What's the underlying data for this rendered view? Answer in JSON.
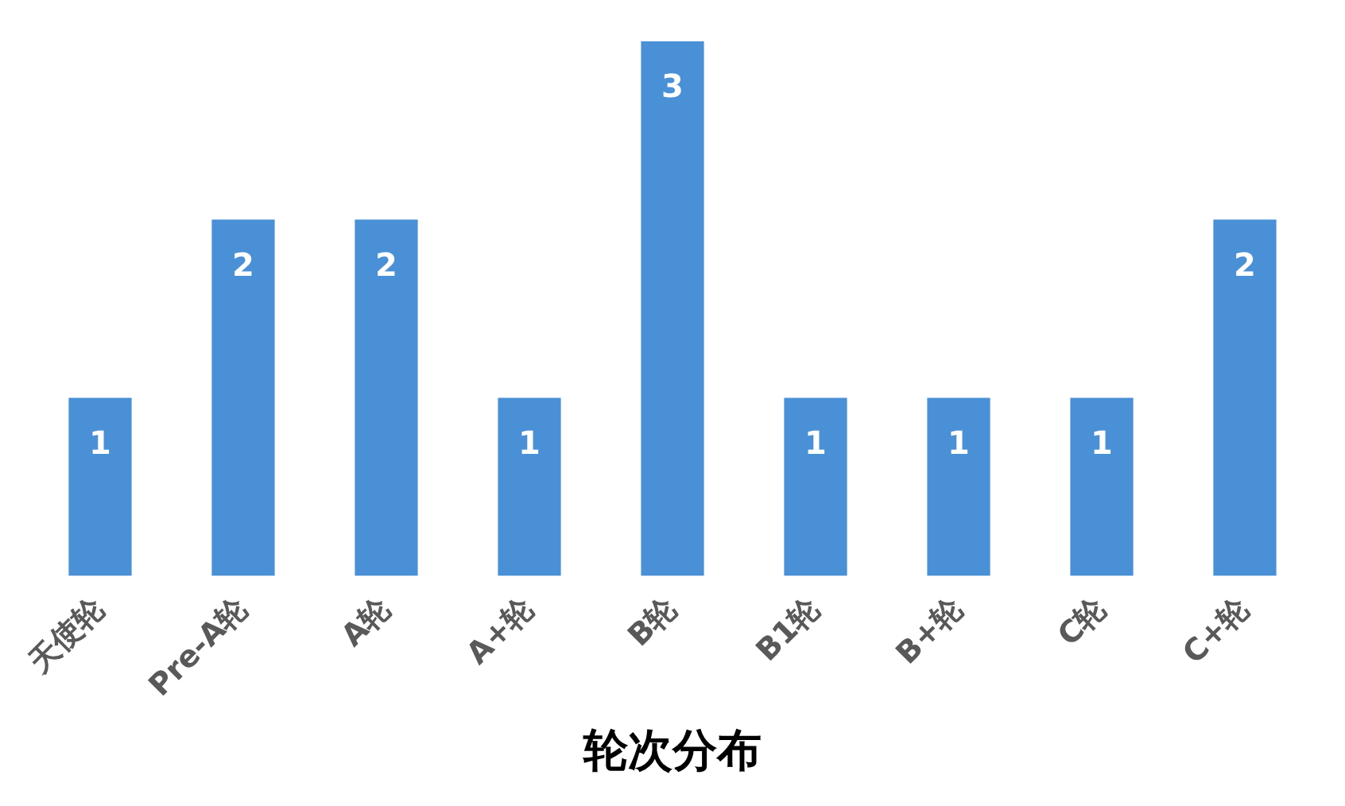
{
  "chart_data": {
    "type": "bar",
    "xlabel": "轮次分布",
    "categories": [
      "天使轮",
      "Pre-A轮",
      "A轮",
      "A+轮",
      "B轮",
      "B1轮",
      "B+轮",
      "C轮",
      "C+轮"
    ],
    "values": [
      1,
      2,
      2,
      1,
      3,
      1,
      1,
      1,
      2
    ],
    "color": "#4a90d6",
    "data_labels": true,
    "grid": false,
    "legend": false
  }
}
